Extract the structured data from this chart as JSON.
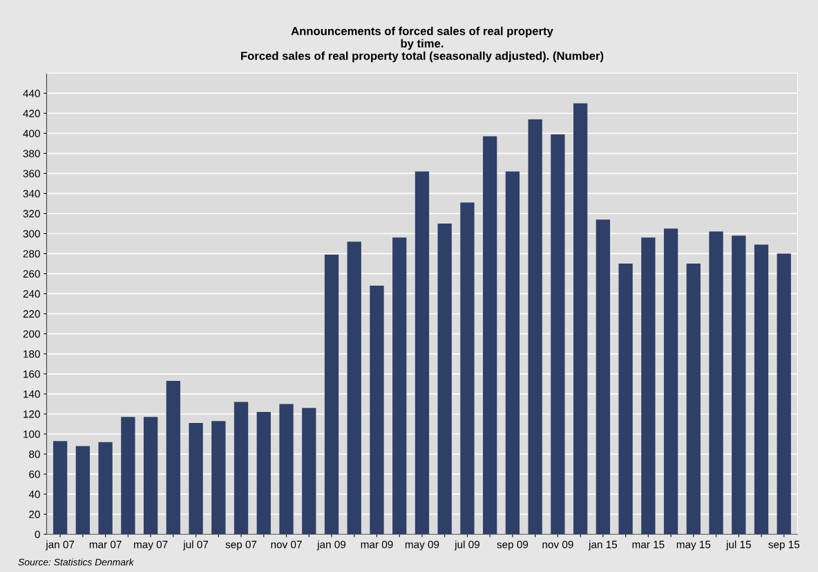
{
  "chart_data": {
    "type": "bar",
    "title": "Announcements of forced sales of real property\nby time.\nForced sales of real property total (seasonally adjusted). (Number)",
    "categories": [
      "jan 07",
      null,
      "mar 07",
      null,
      "may 07",
      null,
      "jul 07",
      null,
      "sep 07",
      null,
      "nov 07",
      null,
      "jan 09",
      null,
      "mar 09",
      null,
      "may 09",
      null,
      "jul 09",
      null,
      "sep 09",
      null,
      "nov 09",
      null,
      "jan 15",
      null,
      "mar 15",
      null,
      "may 15",
      null,
      "jul 15",
      null,
      "sep 15"
    ],
    "values": [
      93,
      88,
      92,
      117,
      117,
      153,
      111,
      113,
      132,
      122,
      130,
      126,
      279,
      292,
      248,
      296,
      362,
      310,
      331,
      397,
      362,
      414,
      399,
      430,
      314,
      270,
      296,
      305,
      270,
      302,
      298,
      289,
      280
    ],
    "color": "#2e4068",
    "ylim": [
      0,
      460
    ],
    "yticks": [
      0,
      20,
      40,
      60,
      80,
      100,
      120,
      140,
      160,
      180,
      200,
      220,
      240,
      260,
      280,
      300,
      320,
      340,
      360,
      380,
      400,
      420,
      440
    ],
    "grid": "y",
    "annotations": [
      "Source: Statistics Denmark"
    ]
  }
}
